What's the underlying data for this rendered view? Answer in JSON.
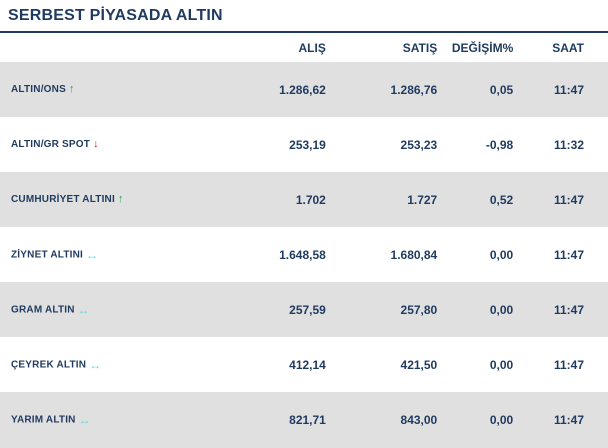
{
  "title": "SERBEST PİYASADA ALTIN",
  "columns": {
    "buy": "ALIŞ",
    "sell": "SATIŞ",
    "change": "DEĞİŞİM%",
    "time": "SAAT"
  },
  "rows": [
    {
      "name": "ALTIN/ONS",
      "trend": "up",
      "trend_icon": "arrow-up-icon",
      "buy": "1.286,62",
      "sell": "1.286,76",
      "change": "0,05",
      "time": "11:47"
    },
    {
      "name": "ALTIN/GR SPOT",
      "trend": "down",
      "trend_icon": "arrow-down-icon",
      "buy": "253,19",
      "sell": "253,23",
      "change": "-0,98",
      "time": "11:32"
    },
    {
      "name": "CUMHURİYET ALTINI",
      "trend": "up",
      "trend_icon": "arrow-up-icon",
      "buy": "1.702",
      "sell": "1.727",
      "change": "0,52",
      "time": "11:47"
    },
    {
      "name": "ZİYNET ALTINI",
      "trend": "flat",
      "trend_icon": "arrow-left-right-icon",
      "buy": "1.648,58",
      "sell": "1.680,84",
      "change": "0,00",
      "time": "11:47"
    },
    {
      "name": "GRAM ALTIN",
      "trend": "flat",
      "trend_icon": "arrow-left-right-icon",
      "buy": "257,59",
      "sell": "257,80",
      "change": "0,00",
      "time": "11:47"
    },
    {
      "name": "ÇEYREK ALTIN",
      "trend": "flat",
      "trend_icon": "arrow-left-right-icon",
      "buy": "412,14",
      "sell": "421,50",
      "change": "0,00",
      "time": "11:47"
    },
    {
      "name": "YARIM ALTIN",
      "trend": "flat",
      "trend_icon": "arrow-left-right-icon",
      "buy": "821,71",
      "sell": "843,00",
      "change": "0,00",
      "time": "11:47"
    }
  ],
  "colors": {
    "text": "#1f3a5f",
    "row_alt": "#e0e0e0",
    "up": "#21a84b",
    "down": "#d0182a",
    "flat": "#63d8e6"
  }
}
